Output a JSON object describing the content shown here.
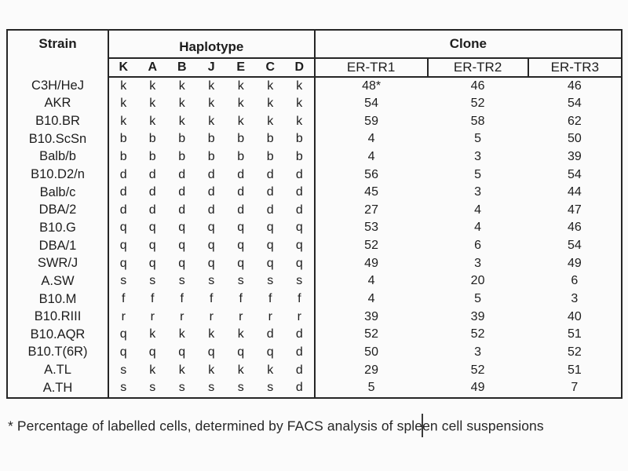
{
  "page": {
    "background": "#fbfbfb",
    "text_color": "#1d1d1d",
    "border_color": "#262626"
  },
  "table": {
    "strain_header": "Strain",
    "haplotype_header": "Haplotype",
    "clone_header": "Clone",
    "haplotype_columns": [
      "K",
      "A",
      "B",
      "J",
      "E",
      "C",
      "D"
    ],
    "clone_columns": [
      "ER-TR1",
      "ER-TR2",
      "ER-TR3"
    ],
    "rows": [
      {
        "strain": "C3H/HeJ",
        "haplotypes": [
          "k",
          "k",
          "k",
          "k",
          "k",
          "k",
          "k"
        ],
        "clones": [
          "48*",
          "46",
          "46"
        ]
      },
      {
        "strain": "AKR",
        "haplotypes": [
          "k",
          "k",
          "k",
          "k",
          "k",
          "k",
          "k"
        ],
        "clones": [
          "54",
          "52",
          "54"
        ]
      },
      {
        "strain": "B10.BR",
        "haplotypes": [
          "k",
          "k",
          "k",
          "k",
          "k",
          "k",
          "k"
        ],
        "clones": [
          "59",
          "58",
          "62"
        ]
      },
      {
        "strain": "B10.ScSn",
        "haplotypes": [
          "b",
          "b",
          "b",
          "b",
          "b",
          "b",
          "b"
        ],
        "clones": [
          "4",
          "5",
          "50"
        ]
      },
      {
        "strain": "Balb/b",
        "haplotypes": [
          "b",
          "b",
          "b",
          "b",
          "b",
          "b",
          "b"
        ],
        "clones": [
          "4",
          "3",
          "39"
        ]
      },
      {
        "strain": "B10.D2/n",
        "haplotypes": [
          "d",
          "d",
          "d",
          "d",
          "d",
          "d",
          "d"
        ],
        "clones": [
          "56",
          "5",
          "54"
        ]
      },
      {
        "strain": "Balb/c",
        "haplotypes": [
          "d",
          "d",
          "d",
          "d",
          "d",
          "d",
          "d"
        ],
        "clones": [
          "45",
          "3",
          "44"
        ]
      },
      {
        "strain": "DBA/2",
        "haplotypes": [
          "d",
          "d",
          "d",
          "d",
          "d",
          "d",
          "d"
        ],
        "clones": [
          "27",
          "4",
          "47"
        ]
      },
      {
        "strain": "B10.G",
        "haplotypes": [
          "q",
          "q",
          "q",
          "q",
          "q",
          "q",
          "q"
        ],
        "clones": [
          "53",
          "4",
          "46"
        ]
      },
      {
        "strain": "DBA/1",
        "haplotypes": [
          "q",
          "q",
          "q",
          "q",
          "q",
          "q",
          "q"
        ],
        "clones": [
          "52",
          "6",
          "54"
        ]
      },
      {
        "strain": "SWR/J",
        "haplotypes": [
          "q",
          "q",
          "q",
          "q",
          "q",
          "q",
          "q"
        ],
        "clones": [
          "49",
          "3",
          "49"
        ]
      },
      {
        "strain": "A.SW",
        "haplotypes": [
          "s",
          "s",
          "s",
          "s",
          "s",
          "s",
          "s"
        ],
        "clones": [
          "4",
          "20",
          "6"
        ]
      },
      {
        "strain": "B10.M",
        "haplotypes": [
          "f",
          "f",
          "f",
          "f",
          "f",
          "f",
          "f"
        ],
        "clones": [
          "4",
          "5",
          "3"
        ]
      },
      {
        "strain": "B10.RIII",
        "haplotypes": [
          "r",
          "r",
          "r",
          "r",
          "r",
          "r",
          "r"
        ],
        "clones": [
          "39",
          "39",
          "40"
        ]
      },
      {
        "strain": "B10.AQR",
        "haplotypes": [
          "q",
          "k",
          "k",
          "k",
          "k",
          "d",
          "d"
        ],
        "clones": [
          "52",
          "52",
          "51"
        ]
      },
      {
        "strain": "B10.T(6R)",
        "haplotypes": [
          "q",
          "q",
          "q",
          "q",
          "q",
          "q",
          "d"
        ],
        "clones": [
          "50",
          "3",
          "52"
        ]
      },
      {
        "strain": "A.TL",
        "haplotypes": [
          "s",
          "k",
          "k",
          "k",
          "k",
          "k",
          "d"
        ],
        "clones": [
          "29",
          "52",
          "51"
        ]
      },
      {
        "strain": "A.TH",
        "haplotypes": [
          "s",
          "s",
          "s",
          "s",
          "s",
          "s",
          "d"
        ],
        "clones": [
          "5",
          "49",
          "7"
        ]
      }
    ]
  },
  "footnote": {
    "before_caret": "* Percentage of labelled cells, determined by FACS analysis of sple",
    "after_caret": "en cell suspensions"
  }
}
